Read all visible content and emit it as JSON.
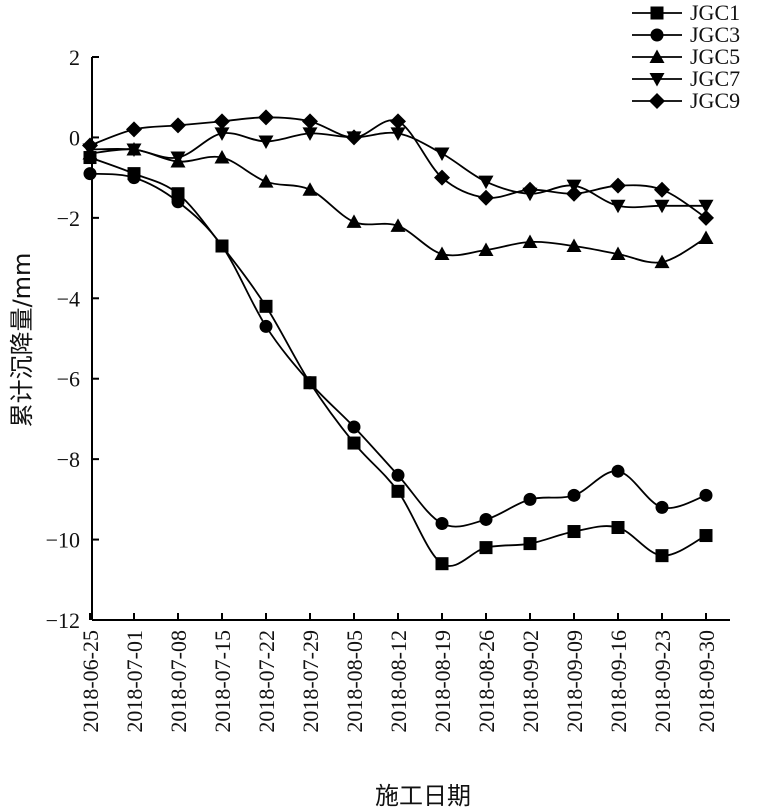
{
  "chart_data": {
    "type": "line",
    "title": "",
    "xlabel": "施工日期",
    "ylabel": "累计沉降量/mm",
    "ylim": [
      -12,
      2
    ],
    "yticks": [
      2,
      0,
      -2,
      -4,
      -6,
      -8,
      -10,
      -12
    ],
    "ytick_labels": [
      "2",
      "0",
      "−2",
      "−4",
      "−6",
      "−8",
      "−10",
      "−12"
    ],
    "categories": [
      "2018-06-25",
      "2018-07-01",
      "2018-07-08",
      "2018-07-15",
      "2018-07-22",
      "2018-07-29",
      "2018-08-05",
      "2018-08-12",
      "2018-08-19",
      "2018-08-26",
      "2018-09-02",
      "2018-09-09",
      "2018-09-16",
      "2018-09-23",
      "2018-09-30"
    ],
    "legend_position": "top-right",
    "grid": false,
    "series": [
      {
        "name": "JGC1",
        "marker": "square",
        "values": [
          -0.5,
          -0.9,
          -1.4,
          -2.7,
          -4.2,
          -6.1,
          -7.6,
          -8.8,
          -10.6,
          -10.2,
          -10.1,
          -9.8,
          -9.7,
          -10.4,
          -9.9
        ]
      },
      {
        "name": "JGC3",
        "marker": "circle",
        "values": [
          -0.9,
          -1.0,
          -1.6,
          -2.7,
          -4.7,
          -6.1,
          -7.2,
          -8.4,
          -9.6,
          -9.5,
          -9.0,
          -8.9,
          -8.3,
          -9.2,
          -8.9
        ]
      },
      {
        "name": "JGC5",
        "marker": "triangle-up",
        "values": [
          -0.4,
          -0.3,
          -0.6,
          -0.5,
          -1.1,
          -1.3,
          -2.1,
          -2.2,
          -2.9,
          -2.8,
          -2.6,
          -2.7,
          -2.9,
          -3.1,
          -2.5
        ]
      },
      {
        "name": "JGC7",
        "marker": "triangle-down",
        "values": [
          -0.3,
          -0.3,
          -0.5,
          0.1,
          -0.1,
          0.1,
          0.0,
          0.1,
          -0.4,
          -1.1,
          -1.4,
          -1.2,
          -1.7,
          -1.7,
          -1.7
        ]
      },
      {
        "name": "JGC9",
        "marker": "diamond",
        "values": [
          -0.2,
          0.2,
          0.3,
          0.4,
          0.5,
          0.4,
          0.0,
          0.4,
          -1.0,
          -1.5,
          -1.3,
          -1.4,
          -1.2,
          -1.3,
          -2.0
        ]
      }
    ]
  }
}
